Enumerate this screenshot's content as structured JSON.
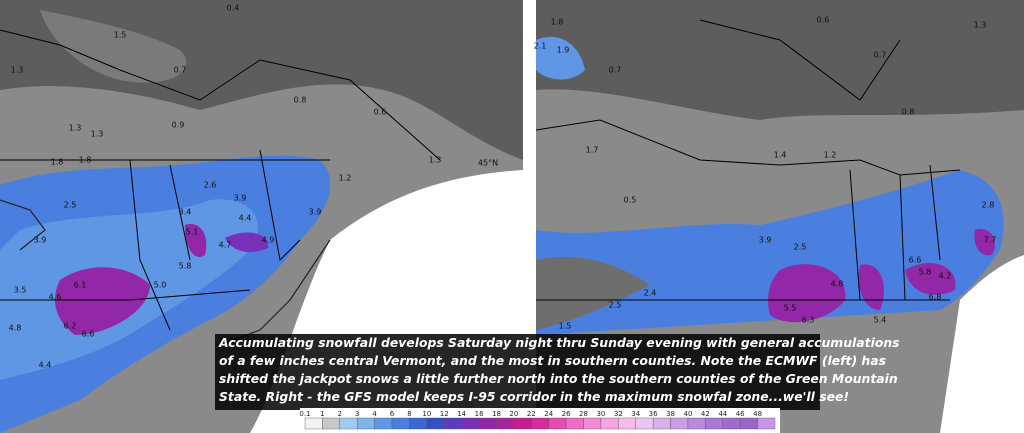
{
  "left_map": {
    "labels": [
      "0.4",
      "1.5",
      "0.7",
      "1.3",
      "1.3",
      "1.3",
      "0.9",
      "0.6",
      "0.8",
      "1.8",
      "1.8",
      "2.6",
      "2.5",
      "3.9",
      "3.4",
      "3.9",
      "4.4",
      "5.1",
      "4.7",
      "4.9",
      "3.9",
      "1.2",
      "1.3",
      "5.8",
      "5.0",
      "6.1",
      "4.6",
      "3.5",
      "6.2",
      "6.6",
      "4.8",
      "4.4",
      "45°N"
    ]
  },
  "right_map": {
    "labels": [
      "1.8",
      "2.1",
      "1.9",
      "0.6",
      "0.7",
      "0.7",
      "1.3",
      "0.8",
      "1.7",
      "0.5",
      "1.4",
      "1.2",
      "2.8",
      "3.9",
      "2.5",
      "4.8",
      "6.6",
      "5.8",
      "7.7",
      "4.2",
      "6.8",
      "6.3",
      "5.5",
      "5.4",
      "2.5",
      "2.4",
      "1.5"
    ]
  },
  "caption": {
    "lines": [
      "Accumulating snowfall develops Saturday night thru Sunday evening with general accumulations",
      "of a few inches central Vermont, and the most in southern counties. Note the ECMWF (left) has",
      "shifted the jackpot snows a little further north into the southern counties of the Green Mountain",
      "State. Right - the GFS model keeps I-95 corridor in the maximum snowfal zone...we'll see!"
    ]
  },
  "color_scale": {
    "labels": [
      "0.1",
      "1",
      "2",
      "3",
      "4",
      "6",
      "8",
      "10",
      "12",
      "14",
      "16",
      "18",
      "20",
      "22",
      "24",
      "26",
      "28",
      "30",
      "32",
      "34",
      "36",
      "38",
      "40",
      "42",
      "44",
      "46",
      "48"
    ],
    "colors": [
      "#f2f2f2",
      "#c8c8c8",
      "#9ecbf0",
      "#7fb3ea",
      "#5f97e4",
      "#4a7fe0",
      "#3b66d8",
      "#3250c8",
      "#5a3cc0",
      "#7a2fb8",
      "#9228a8",
      "#a82598",
      "#c21e8c",
      "#d82a9c",
      "#e54cb0",
      "#ee6cc4",
      "#f48ad4",
      "#f7a4e0",
      "#f9bce8",
      "#eac6f2",
      "#d9b2ec",
      "#c99ee4",
      "#b98adc",
      "#a978d4",
      "#9d6ccc",
      "#9a66c8",
      "#c896e6"
    ]
  }
}
